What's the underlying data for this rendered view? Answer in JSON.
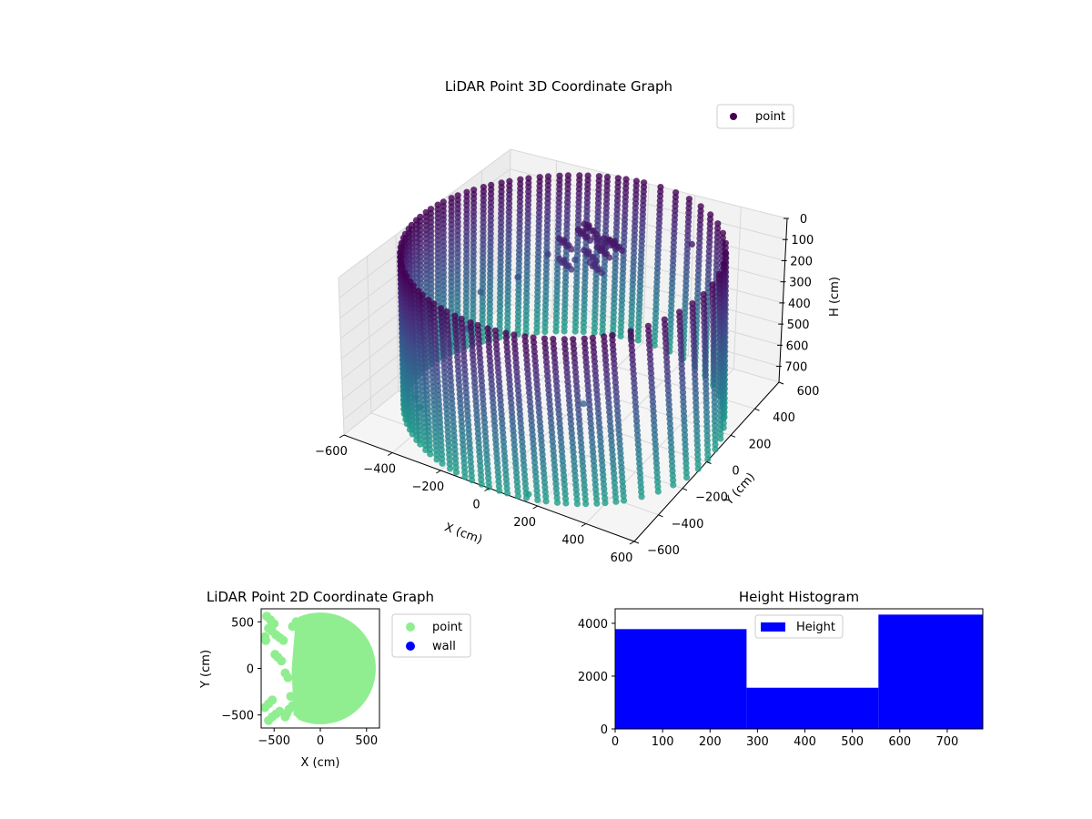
{
  "chart_data": [
    {
      "type": "scatter",
      "projection": "3d",
      "title": "LiDAR Point 3D Coordinate Graph",
      "xlabel": "X (cm)",
      "ylabel": "Y (cm)",
      "zlabel": "H (cm)",
      "xlim": [
        -600,
        600
      ],
      "ylim": [
        -600,
        600
      ],
      "zlim": [
        0,
        775
      ],
      "z_inverted": true,
      "xticks": [
        -600,
        -400,
        -200,
        0,
        200,
        400,
        600
      ],
      "yticks": [
        -600,
        -400,
        -200,
        0,
        200,
        400,
        600
      ],
      "zticks": [
        0,
        100,
        200,
        300,
        400,
        500,
        600,
        700
      ],
      "grid": true,
      "legend": {
        "entries": [
          "point"
        ],
        "placement": "upper-right"
      },
      "colormap": "viridis",
      "series": [
        {
          "name": "point",
          "structure": "cylindrical-wall",
          "radius": 600,
          "center_x": 0,
          "center_y": 0,
          "h_min": 0,
          "h_max": 775,
          "arc_from_deg": -85,
          "arc_to_deg": 140
        },
        {
          "name": "point",
          "structure": "inner-cluster",
          "x": [
            -150,
            -100,
            -50,
            0,
            50,
            -120,
            -60,
            20,
            -80,
            0
          ],
          "y": [
            250,
            300,
            260,
            320,
            280,
            200,
            350,
            240,
            310,
            220
          ],
          "h": [
            120,
            90,
            150,
            110,
            80,
            180,
            140,
            100,
            60,
            170
          ]
        },
        {
          "name": "point",
          "structure": "scattered",
          "x": [
            -560,
            -500,
            -520,
            -450,
            -420,
            -300,
            -250,
            -180,
            120,
            300,
            250,
            -380,
            -320
          ],
          "y": [
            -100,
            -250,
            50,
            150,
            -350,
            -200,
            300,
            380,
            -520,
            420,
            -300,
            -450,
            200
          ],
          "h": [
            500,
            620,
            650,
            420,
            700,
            350,
            250,
            300,
            800,
            100,
            450,
            580,
            330
          ]
        }
      ]
    },
    {
      "type": "scatter",
      "title": "LiDAR Point 2D Coordinate Graph",
      "xlabel": "X (cm)",
      "ylabel": "Y (cm)",
      "xlim": [
        -640,
        640
      ],
      "ylim": [
        -640,
        640
      ],
      "xticks": [
        -500,
        0,
        500
      ],
      "yticks": [
        -500,
        0,
        500
      ],
      "legend": {
        "entries": [
          "point",
          "wall"
        ],
        "placement": "outside-right"
      },
      "series": [
        {
          "name": "point",
          "color": "#90EE90",
          "structure": "disk",
          "radius": 600,
          "cut_x": -230
        },
        {
          "name": "point",
          "color": "#90EE90",
          "structure": "scattered",
          "x": [
            -580,
            -540,
            -500,
            -560,
            -520,
            -480,
            -440,
            -400,
            -600,
            -560,
            -520,
            -480,
            -440,
            -380,
            -360,
            -340,
            -300,
            -600,
            -560,
            -520,
            -490,
            -460,
            -420,
            -380,
            -350,
            -320,
            -590,
            -300,
            -260
          ],
          "y": [
            560,
            520,
            480,
            430,
            400,
            360,
            330,
            300,
            340,
            -560,
            -520,
            -490,
            -460,
            -520,
            -480,
            -440,
            -400,
            -420,
            -380,
            -340,
            150,
            120,
            80,
            -50,
            -100,
            -300,
            300,
            450,
            500
          ]
        },
        {
          "name": "wall",
          "color": "#0000FF",
          "values": []
        }
      ]
    },
    {
      "type": "bar",
      "title": "Height Histogram",
      "xlim": [
        0,
        775
      ],
      "ylim": [
        0,
        4550
      ],
      "xticks": [
        0,
        100,
        200,
        300,
        400,
        500,
        600,
        700
      ],
      "yticks": [
        0,
        2000,
        4000
      ],
      "legend": {
        "entries": [
          "Height"
        ],
        "placement": "upper-center"
      },
      "series": [
        {
          "name": "Height",
          "color": "#0000FF",
          "bins": [
            [
              0,
              277
            ],
            [
              277,
              555
            ],
            [
              555,
              775
            ]
          ],
          "values": [
            3780,
            1560,
            4330
          ]
        }
      ]
    }
  ]
}
